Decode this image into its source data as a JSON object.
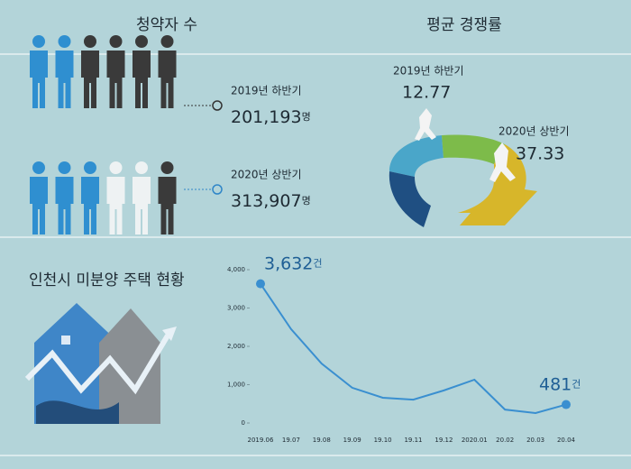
{
  "applicants": {
    "title": "청약자 수",
    "rows": [
      {
        "period": "2019년 하반기",
        "count": "201,193",
        "unit": "명"
      },
      {
        "period": "2020년 상반기",
        "count": "313,907",
        "unit": "명"
      }
    ]
  },
  "competition": {
    "title": "평균 경쟁률",
    "items": [
      {
        "period": "2019년 하반기",
        "ratio": 12.77
      },
      {
        "period": "2020년 상반기",
        "ratio": 37.33
      }
    ]
  },
  "chart_data": {
    "type": "line",
    "title": "인천시 미분양 주택 현황",
    "categories": [
      "2019.06",
      "19.07",
      "19.08",
      "19.09",
      "19.10",
      "19.11",
      "19.12",
      "2020.01",
      "20.02",
      "20.03",
      "20.04"
    ],
    "values": [
      3632,
      2450,
      1550,
      920,
      660,
      610,
      850,
      1130,
      350,
      260,
      481
    ],
    "value_labels": [
      "3,632",
      null,
      null,
      null,
      null,
      null,
      null,
      null,
      null,
      null,
      "481"
    ],
    "value_label_unit": "건",
    "color": "#3a8fd0",
    "ylim": [
      0,
      4000
    ],
    "yticks": [
      0,
      {
        "value": 1000,
        "label": "1,000"
      },
      {
        "value": 2000,
        "label": "2,000"
      },
      {
        "value": 3000,
        "label": "3,000"
      },
      {
        "value": 4000,
        "label": "4,000"
      }
    ]
  }
}
